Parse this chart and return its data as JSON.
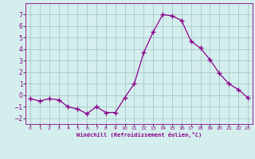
{
  "x": [
    0,
    1,
    2,
    3,
    4,
    5,
    6,
    7,
    8,
    9,
    10,
    11,
    12,
    13,
    14,
    15,
    16,
    17,
    18,
    19,
    20,
    21,
    22,
    23
  ],
  "y": [
    -0.3,
    -0.5,
    -0.3,
    -0.4,
    -1.0,
    -1.2,
    -1.6,
    -1.0,
    -1.5,
    -1.5,
    -0.2,
    1.0,
    3.7,
    5.5,
    7.0,
    6.9,
    6.5,
    4.7,
    4.1,
    3.1,
    1.9,
    1.0,
    0.5,
    -0.2
  ],
  "line_color": "#8B008B",
  "marker": "+",
  "marker_size": 4,
  "bg_color": "#d4eeee",
  "grid_color": "#a8c8c8",
  "xlabel": "Windchill (Refroidissement éolien,°C)",
  "ylim": [
    -2.5,
    8.0
  ],
  "xlim": [
    -0.5,
    23.5
  ],
  "yticks": [
    -2,
    -1,
    0,
    1,
    2,
    3,
    4,
    5,
    6,
    7
  ],
  "xticks": [
    0,
    1,
    2,
    3,
    4,
    5,
    6,
    7,
    8,
    9,
    10,
    11,
    12,
    13,
    14,
    15,
    16,
    17,
    18,
    19,
    20,
    21,
    22,
    23
  ]
}
